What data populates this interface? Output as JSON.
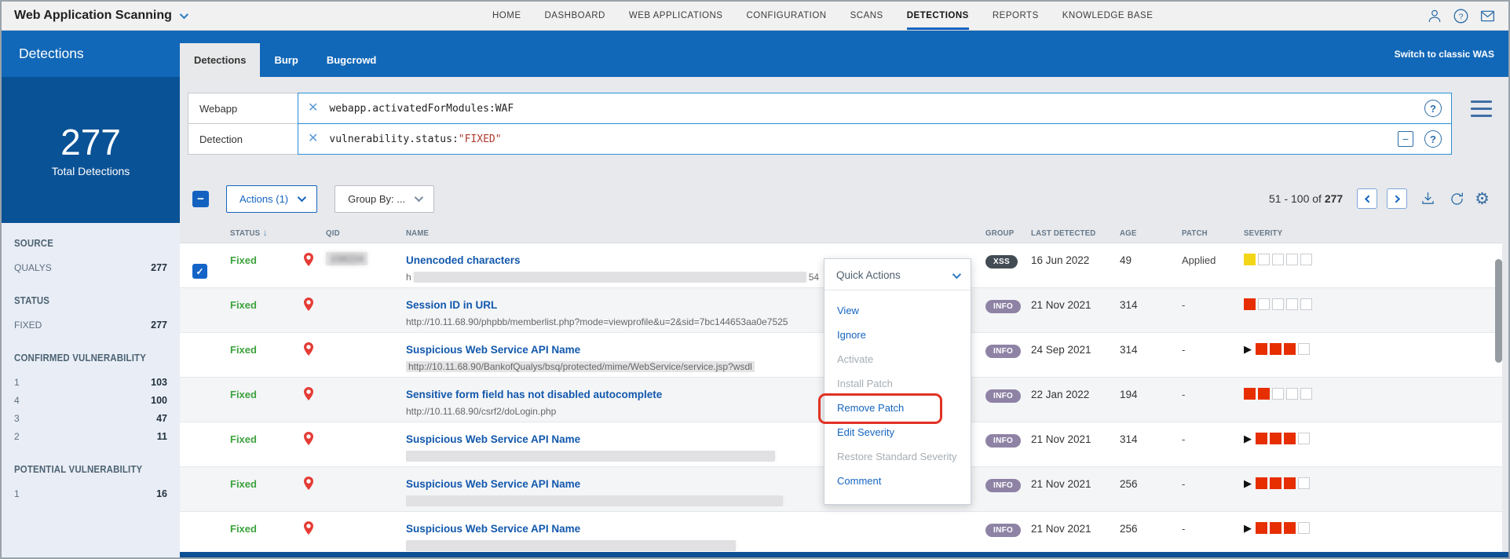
{
  "top_bar": {
    "product_menu": "Web Application Scanning",
    "nav": [
      "HOME",
      "DASHBOARD",
      "WEB APPLICATIONS",
      "CONFIGURATION",
      "SCANS",
      "DETECTIONS",
      "REPORTS",
      "KNOWLEDGE BASE"
    ],
    "active_nav": "DETECTIONS"
  },
  "header": {
    "page_title": "Detections",
    "tabs": [
      "Detections",
      "Burp",
      "Bugcrowd"
    ],
    "active_tab": "Detections",
    "switch_link": "Switch to classic WAS"
  },
  "sidebar": {
    "total_count": "277",
    "total_label": "Total Detections",
    "sections": [
      {
        "title": "SOURCE",
        "rows": [
          {
            "label": "QUALYS",
            "value": "277"
          }
        ]
      },
      {
        "title": "STATUS",
        "rows": [
          {
            "label": "FIXED",
            "value": "277"
          }
        ]
      },
      {
        "title": "CONFIRMED VULNERABILITY",
        "rows": [
          {
            "label": "1",
            "value": "103"
          },
          {
            "label": "4",
            "value": "100"
          },
          {
            "label": "3",
            "value": "47"
          },
          {
            "label": "2",
            "value": "11"
          }
        ]
      },
      {
        "title": "POTENTIAL VULNERABILITY",
        "rows": [
          {
            "label": "1",
            "value": "16"
          }
        ]
      }
    ]
  },
  "filters": {
    "rows": [
      {
        "label": "Webapp",
        "query": "webapp.activatedForModules:WAF",
        "query_red": ""
      },
      {
        "label": "Detection",
        "query": "vulnerability.status:",
        "query_red": "\"FIXED\""
      }
    ]
  },
  "toolbar": {
    "actions_label": "Actions (1)",
    "group_by_label": "Group By: ...",
    "pagination": "51 - 100 of",
    "pagination_total": "277"
  },
  "table": {
    "headers": [
      "STATUS",
      "QID",
      "NAME",
      "GROUP",
      "LAST DETECTED",
      "AGE",
      "PATCH",
      "SEVERITY"
    ],
    "rows": [
      {
        "checked": true,
        "status": "Fixed",
        "qid": "158224",
        "qid_redacted": true,
        "name": "Unencoded characters",
        "url_text": "h",
        "url_bar_width": 500,
        "url_suffix": "54",
        "url_highlight": false,
        "group": "XSS",
        "group_style": "xss",
        "last_detected": "16 Jun 2022",
        "age": "49",
        "patch": "Applied",
        "severity": [
          "yellow",
          "empty",
          "empty",
          "empty",
          "empty"
        ]
      },
      {
        "checked": false,
        "status": "Fixed",
        "qid": "",
        "qid_redacted": true,
        "name": "Session ID in URL",
        "url_text": "http://10.11.68.90/phpbb/memberlist.php?mode=viewprofile&u=2&sid=7bc144653aa0e7525",
        "url_bar_width": 0,
        "url_suffix": "",
        "url_highlight": false,
        "group": "INFO",
        "group_style": "info",
        "last_detected": "21 Nov 2021",
        "age": "314",
        "patch": "-",
        "severity": [
          "red",
          "empty",
          "empty",
          "empty",
          "empty"
        ]
      },
      {
        "checked": false,
        "status": "Fixed",
        "qid": "",
        "qid_redacted": true,
        "name": "Suspicious Web Service API Name",
        "url_text": "http://10.11.68.90/BankofQualys/bsq/protected/mime/WebService/service.jsp?wsdl",
        "url_bar_width": 0,
        "url_suffix": "",
        "url_highlight": true,
        "group": "INFO",
        "group_style": "info",
        "last_detected": "24 Sep 2021",
        "age": "314",
        "patch": "-",
        "severity": [
          "arrow",
          "red",
          "red",
          "red",
          "empty"
        ]
      },
      {
        "checked": false,
        "status": "Fixed",
        "qid": "",
        "qid_redacted": true,
        "name": "Sensitive form field has not disabled autocomplete",
        "url_text": "http://10.11.68.90/csrf2/doLogin.php",
        "url_bar_width": 0,
        "url_suffix": "",
        "url_highlight": false,
        "group": "INFO",
        "group_style": "info",
        "last_detected": "22 Jan 2022",
        "age": "194",
        "patch": "-",
        "severity": [
          "red",
          "red",
          "empty",
          "empty",
          "empty"
        ]
      },
      {
        "checked": false,
        "status": "Fixed",
        "qid": "",
        "qid_redacted": true,
        "name": "Suspicious Web Service API Name",
        "url_text": "",
        "url_bar_width": 470,
        "url_suffix": "",
        "url_highlight": false,
        "group": "INFO",
        "group_style": "info",
        "last_detected": "21 Nov 2021",
        "age": "314",
        "patch": "-",
        "severity": [
          "arrow",
          "red",
          "red",
          "red",
          "empty"
        ]
      },
      {
        "checked": false,
        "status": "Fixed",
        "qid": "",
        "qid_redacted": true,
        "name": "Suspicious Web Service API Name",
        "url_text": "",
        "url_bar_width": 480,
        "url_suffix": "",
        "url_highlight": false,
        "group": "INFO",
        "group_style": "info",
        "last_detected": "21 Nov 2021",
        "age": "256",
        "patch": "-",
        "severity": [
          "arrow",
          "red",
          "red",
          "red",
          "empty"
        ]
      },
      {
        "checked": false,
        "status": "Fixed",
        "qid": "",
        "qid_redacted": true,
        "name": "Suspicious Web Service API Name",
        "url_text": "",
        "url_bar_width": 420,
        "url_suffix": "",
        "url_highlight": false,
        "group": "INFO",
        "group_style": "info",
        "last_detected": "21 Nov 2021",
        "age": "256",
        "patch": "-",
        "severity": [
          "arrow",
          "red",
          "red",
          "red",
          "empty"
        ]
      }
    ]
  },
  "quick_actions": {
    "title": "Quick Actions",
    "items": [
      {
        "label": "View",
        "enabled": true,
        "highlighted": false
      },
      {
        "label": "Ignore",
        "enabled": true,
        "highlighted": false
      },
      {
        "label": "Activate",
        "enabled": false,
        "highlighted": false
      },
      {
        "label": "Install Patch",
        "enabled": false,
        "highlighted": false
      },
      {
        "label": "Remove Patch",
        "enabled": true,
        "highlighted": true
      },
      {
        "label": "Edit Severity",
        "enabled": true,
        "highlighted": false
      },
      {
        "label": "Restore Standard Severity",
        "enabled": false,
        "highlighted": false
      },
      {
        "label": "Comment",
        "enabled": true,
        "highlighted": false
      }
    ]
  },
  "icons": {
    "clear": "✕",
    "help": "?",
    "collapse": "−",
    "sort_desc": "↓",
    "checkbox_indeterminate": "−",
    "checkbox_checked": "✓",
    "settings": "⚙",
    "severity_modified_marker": "▶"
  },
  "colors": {
    "accent_blue": "#1268b8",
    "dark_blue_panel": "#0a5296",
    "status_fixed_green": "#3ca23c",
    "severity_red": "#e62e00",
    "severity_yellow": "#f4d619",
    "badge_xss": "#434c54",
    "badge_info": "#8e83a5",
    "annotation_red": "#e13224",
    "query_value_red": "#b03a2e"
  }
}
